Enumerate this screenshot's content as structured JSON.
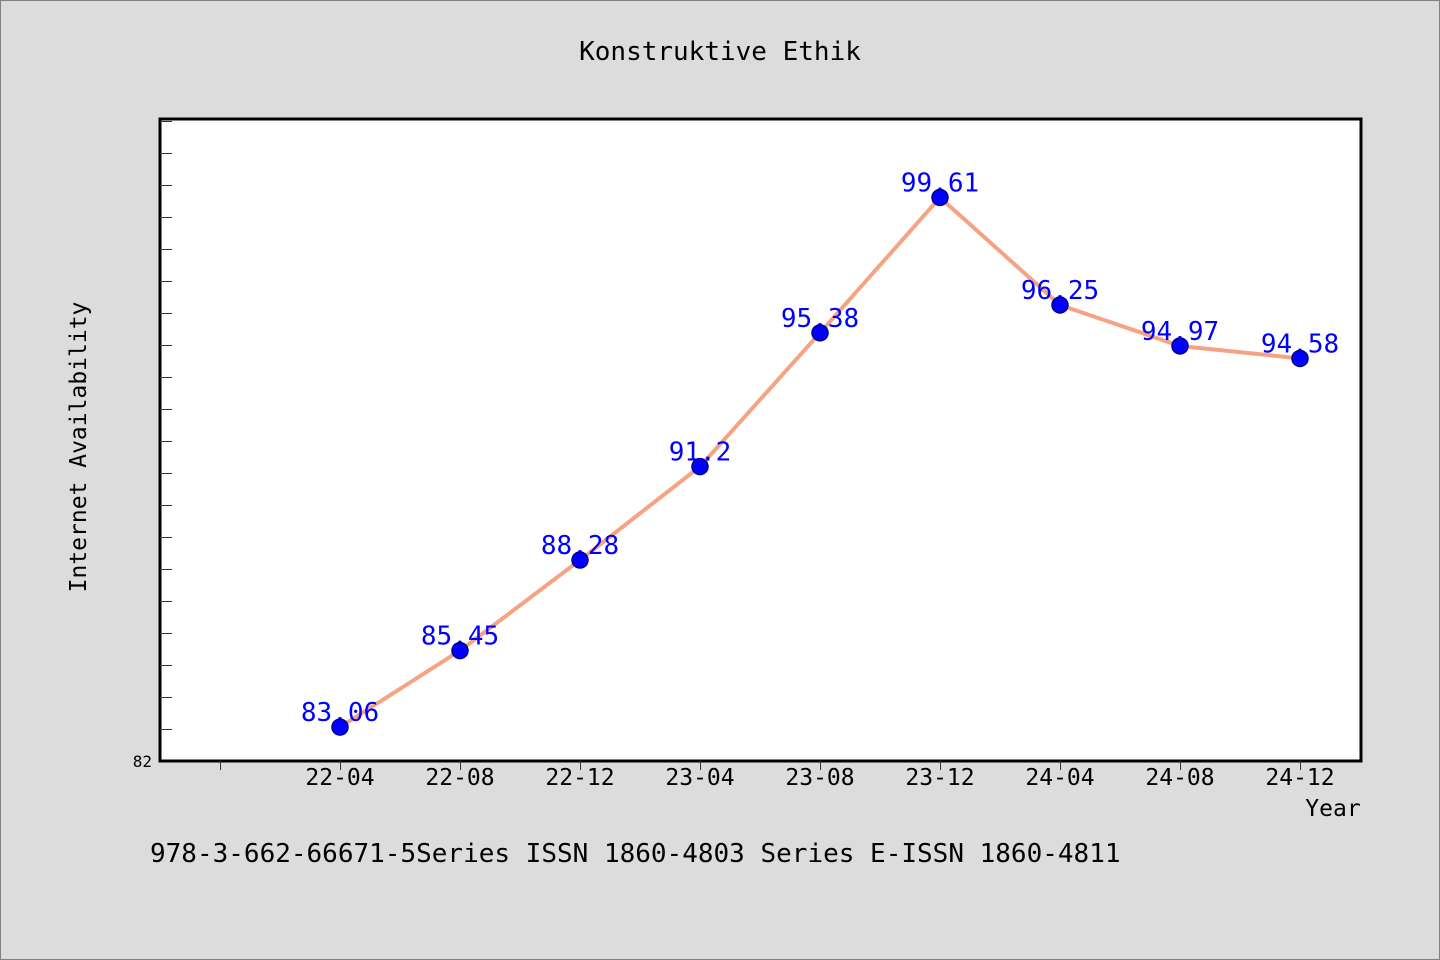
{
  "chart_data": {
    "type": "line",
    "title": "Konstruktive Ethik",
    "xlabel": "Year",
    "ylabel": "Internet Availability",
    "categories": [
      "22-04",
      "22-08",
      "22-12",
      "23-04",
      "23-08",
      "23-12",
      "24-04",
      "24-08",
      "24-12"
    ],
    "series": [
      {
        "values": [
          83.06,
          85.45,
          88.28,
          91.2,
          95.38,
          99.61,
          96.25,
          94.97,
          94.58
        ],
        "line_color": "#f5a383",
        "marker_color": "#0000ff",
        "marker_edge_color": "#00008b",
        "label_color": "#0000ff"
      }
    ],
    "ylim": [
      82,
      102
    ],
    "y_tick_labels": [
      "82"
    ],
    "data_labels": true,
    "grid": false,
    "legend": false
  },
  "footer": "978-3-662-66671-5Series ISSN 1860-4803 Series E-ISSN 1860-4811",
  "colors": {
    "background": "#dcdcdc",
    "plot_background": "#ffffff",
    "frame": "#000000"
  }
}
